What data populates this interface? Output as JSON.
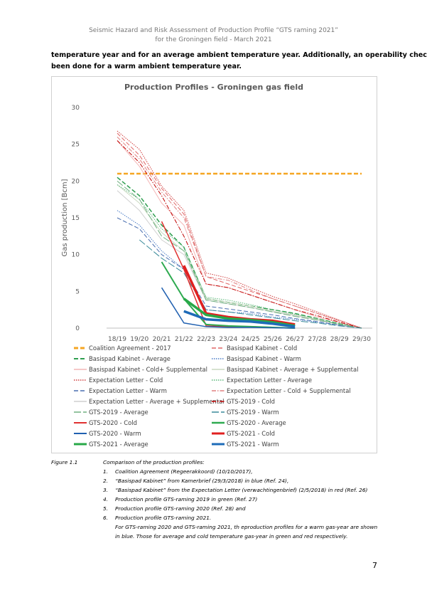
{
  "header": {
    "line1": "Seismic Hazard and Risk Assessment of Production Profile “GTS raming 2021”",
    "line2": "for the Groningen field - March 2021"
  },
  "paragraph": [
    "temperature year and for an average ambient temperature year. Additionally, an operability check has",
    "been done for a warm ambient temperature year."
  ],
  "chart_data": {
    "type": "line",
    "title": "Production Profiles - Groningen gas field",
    "y_label": "Gas production [Bcm]",
    "categories": [
      "18/19",
      "19/20",
      "20/21",
      "21/22",
      "22/23",
      "23/24",
      "24/25",
      "25/26",
      "26/27",
      "27/28",
      "28/29",
      "29/30"
    ],
    "ylim": [
      0,
      30
    ],
    "yticks": [
      0,
      5,
      10,
      15,
      20,
      25,
      30
    ],
    "grid": false,
    "legend": "bottom",
    "series": [
      {
        "name": "Coalition Agreement - 2017",
        "color": "#f5a623",
        "dash": "dashed",
        "width": 2.5,
        "values": [
          21,
          21,
          21,
          21,
          21,
          21,
          21,
          21,
          21,
          21,
          21,
          21
        ]
      },
      {
        "name": "Basispad Kabinet - Cold",
        "color": "#e06666",
        "dash": "dashed",
        "width": 1,
        "values": [
          26.5,
          23.5,
          19,
          15.5,
          7,
          6,
          5,
          4,
          3,
          2,
          1,
          0
        ]
      },
      {
        "name": "Basispad Kabinet - Average",
        "color": "#2e9e4f",
        "dash": "dashed",
        "width": 1.5,
        "values": [
          20.5,
          18,
          14,
          11,
          4,
          3.5,
          3,
          2.5,
          2,
          1.3,
          0.6,
          0
        ]
      },
      {
        "name": "Basispad Kabinet - Warm",
        "color": "#4a7cc7",
        "dash": "dotted",
        "width": 1,
        "values": [
          16,
          14,
          10.5,
          8,
          2.5,
          2.2,
          2,
          1.5,
          1.2,
          0.8,
          0.4,
          0
        ]
      },
      {
        "name": "Basispad Kabinet - Cold+ Supplemental",
        "color": "#f4b6b6",
        "dash": "solid",
        "width": 1,
        "values": [
          25.5,
          22,
          17,
          14,
          6,
          5.5,
          4.5,
          3.5,
          2.5,
          1.5,
          0.8,
          0
        ]
      },
      {
        "name": "Basispad Kabinet - Average + Supplemental",
        "color": "#c9d9c0",
        "dash": "solid",
        "width": 1,
        "values": [
          19.5,
          17,
          13,
          10.5,
          4,
          3.5,
          3,
          2.3,
          1.8,
          1.2,
          0.5,
          0
        ]
      },
      {
        "name": "Expectation Letter - Cold",
        "color": "#d04040",
        "dash": "dotted",
        "width": 1,
        "values": [
          26.8,
          24.3,
          19.3,
          16,
          7.5,
          6.8,
          5.5,
          4.3,
          3.3,
          2.2,
          1.1,
          0
        ]
      },
      {
        "name": "Expectation Letter - Average",
        "color": "#5cb87a",
        "dash": "dotted",
        "width": 1,
        "values": [
          19.5,
          17.5,
          13.5,
          11,
          4.2,
          3.8,
          3.2,
          2.5,
          1.9,
          1.3,
          0.6,
          0
        ]
      },
      {
        "name": "Expectation Letter - Warm",
        "color": "#4a6fb0",
        "dash": "dashed",
        "width": 1,
        "values": [
          15,
          13.5,
          10,
          8,
          3,
          2.6,
          2.2,
          1.8,
          1.3,
          0.9,
          0.4,
          0
        ]
      },
      {
        "name": "Expectation Letter - Cold + Supplemental",
        "color": "#e08080",
        "dash": "dash-dot",
        "width": 1,
        "values": [
          26,
          23,
          18.5,
          15,
          7,
          6.5,
          5.2,
          4,
          3,
          2,
          1,
          0
        ]
      },
      {
        "name": "Expectation Letter - Average + Supplemental",
        "color": "#cfcfcf",
        "dash": "solid",
        "width": 1,
        "values": [
          18.7,
          16,
          12,
          10,
          3.8,
          3.3,
          2.8,
          2.2,
          1.7,
          1.1,
          0.5,
          0
        ]
      },
      {
        "name": "GTS-2019 - Cold",
        "color": "#c00000",
        "dash": "dash-dot",
        "width": 1,
        "values": [
          25.5,
          22.5,
          18,
          12.5,
          6,
          5.5,
          4.5,
          3.5,
          2.5,
          1.7,
          0.8,
          0
        ]
      },
      {
        "name": "GTS-2019 - Average",
        "color": "#70b080",
        "dash": "long-dash",
        "width": 1,
        "values": [
          20,
          17.5,
          12.5,
          10.5,
          3.8,
          3.3,
          2.8,
          2.2,
          1.6,
          1.1,
          0.5,
          0
        ]
      },
      {
        "name": "GTS-2019 - Warm",
        "color": "#3a8a9a",
        "dash": "long-dash",
        "width": 1,
        "values": [
          null,
          12,
          9.5,
          7.5,
          2.5,
          2.2,
          1.8,
          1.4,
          1,
          0.7,
          0.3,
          0
        ]
      },
      {
        "name": "GTS-2020 - Cold",
        "color": "#e03030",
        "dash": "solid",
        "width": 1.5,
        "values": [
          null,
          null,
          14.5,
          8,
          0.3,
          0.2,
          0.2,
          0.1,
          0,
          null,
          null,
          null
        ]
      },
      {
        "name": "GTS-2020 - Average",
        "color": "#2eaa50",
        "dash": "solid",
        "width": 2,
        "values": [
          null,
          null,
          9,
          4,
          0.5,
          0.3,
          0.2,
          0.1,
          0,
          null,
          null,
          null
        ]
      },
      {
        "name": "GTS-2020 - Warm",
        "color": "#2060b0",
        "dash": "solid",
        "width": 1.5,
        "values": [
          null,
          null,
          5.5,
          0.7,
          0.2,
          0.1,
          0.1,
          0.05,
          0,
          null,
          null,
          null
        ]
      },
      {
        "name": "GTS-2021 - Cold",
        "color": "#e02020",
        "dash": "solid",
        "width": 3.5,
        "values": [
          null,
          null,
          null,
          8.5,
          2,
          1.5,
          1.2,
          1,
          0.5,
          null,
          null,
          null
        ]
      },
      {
        "name": "GTS-2021 - Average",
        "color": "#28a848",
        "dash": "solid",
        "width": 3.5,
        "values": [
          null,
          null,
          null,
          4,
          1.8,
          1.3,
          1.1,
          0.8,
          0.3,
          null,
          null,
          null
        ]
      },
      {
        "name": "GTS-2021 - Warm",
        "color": "#1e6bb8",
        "dash": "solid",
        "width": 3.5,
        "values": [
          null,
          null,
          null,
          2.3,
          1.2,
          1,
          0.9,
          0.6,
          0.2,
          null,
          null,
          null
        ]
      }
    ]
  },
  "caption": {
    "label": "Figure 1.1",
    "title": "Comparison of the production profiles:",
    "items": [
      {
        "num": "1.",
        "text": "Coalition Agreement (Regeerakkoord) (10/10/2017),"
      },
      {
        "num": "2.",
        "text": "“Basispad Kabinet” from Kamerbrief (29/3/2018) in blue (Ref. 24),"
      },
      {
        "num": "3.",
        "text": "“Basispad Kabinet” from the Expectation Letter (verwachtingenbrief) (2/5/2018) in red (Ref. 26)"
      },
      {
        "num": "4.",
        "text": "Production profile GTS-raming 2019 in green (Ref. 27)"
      },
      {
        "num": "5.",
        "text": "Production profile GTS-raming 2020  (Ref. 28) and"
      },
      {
        "num": "6.",
        "text": "Production profile GTS-raming 2021."
      }
    ],
    "note": [
      "For GTS-raming 2020 and GTS-raming 2021, th eproduction profiles for a warm gas-year are shown",
      "in blue. Those for average and cold temperature gas-year in green and red respectively."
    ]
  },
  "page_number": "7"
}
